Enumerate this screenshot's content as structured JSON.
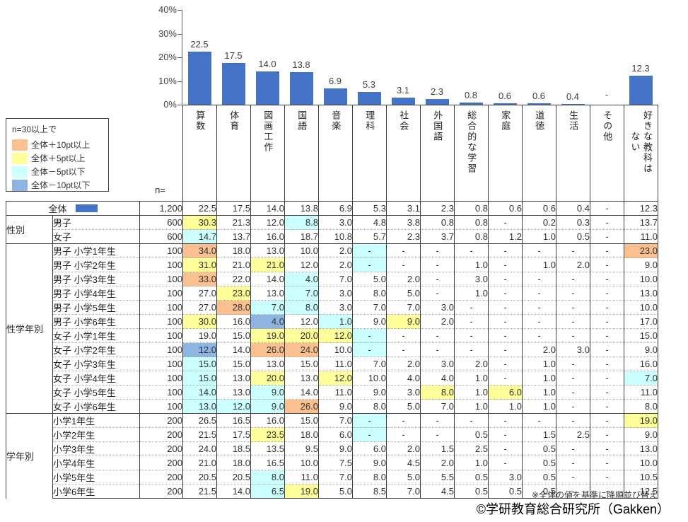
{
  "chart_data": {
    "type": "bar",
    "title": "",
    "xlabel": "",
    "ylabel": "",
    "unit": "%",
    "ylim": [
      0,
      40
    ],
    "ytick_labels": [
      "40%",
      "30%",
      "20%",
      "10%",
      "0%"
    ],
    "grid": false,
    "legend_position": "none",
    "bar_color": "#4472C4",
    "categories": [
      "算数",
      "体育",
      "図画工作",
      "国語",
      "音楽",
      "理科",
      "社会",
      "外国語",
      "総合的な学習",
      "家庭",
      "道徳",
      "生活",
      "その他",
      "好きな教科はない"
    ],
    "values": [
      22.5,
      17.5,
      14.0,
      13.8,
      6.9,
      5.3,
      3.1,
      2.3,
      0.8,
      0.6,
      0.6,
      0.4,
      null,
      12.3
    ],
    "value_labels": [
      "22.5",
      "17.5",
      "14.0",
      "13.8",
      "6.9",
      "5.3",
      "3.1",
      "2.3",
      "0.8",
      "0.6",
      "0.6",
      "0.4",
      "-",
      "12.3"
    ]
  },
  "legend": {
    "title": "n=30以上で",
    "items": [
      {
        "label": "全体＋10pt以上",
        "color": "#FAC090",
        "code": "o"
      },
      {
        "label": "全体＋5pt以上",
        "color": "#FFFF99",
        "code": "y"
      },
      {
        "label": "全体－5pt以下",
        "color": "#CCFFFF",
        "code": "c"
      },
      {
        "label": "全体－10pt以下",
        "color": "#8EB4E3",
        "code": "b"
      }
    ]
  },
  "colors": {
    "bar": "#4472C4",
    "hl_o": "#FAC090",
    "hl_y": "#FFFF99",
    "hl_c": "#CCFFFF",
    "hl_b": "#8EB4E3"
  },
  "table": {
    "n_header": "n=",
    "columns": [
      "算数",
      "体育",
      "図画工作",
      "国語",
      "音楽",
      "理科",
      "社会",
      "外国語",
      "総合的な学習",
      "家庭",
      "道徳",
      "生活",
      "その他",
      "好きな教科は\nない"
    ],
    "groups": [
      {
        "label": "",
        "overall": true,
        "rows": [
          {
            "label": "全体",
            "n": "1,200",
            "values": [
              "22.5",
              "17.5",
              "14.0",
              "13.8",
              "6.9",
              "5.3",
              "3.1",
              "2.3",
              "0.8",
              "0.6",
              "0.6",
              "0.4",
              "-",
              "12.3"
            ],
            "hl": [
              "",
              "",
              "",
              "",
              "",
              "",
              "",
              "",
              "",
              "",
              "",
              "",
              "",
              ""
            ]
          }
        ]
      },
      {
        "label": "性別",
        "rows": [
          {
            "label": "男子",
            "n": "600",
            "values": [
              "30.3",
              "21.3",
              "12.0",
              "8.8",
              "3.0",
              "4.8",
              "3.8",
              "0.8",
              "0.8",
              "-",
              "0.2",
              "0.3",
              "-",
              "13.7"
            ],
            "hl": [
              "y",
              "",
              "",
              "c",
              "",
              "",
              "",
              "",
              "",
              "",
              "",
              "",
              "",
              ""
            ]
          },
          {
            "label": "女子",
            "n": "600",
            "values": [
              "14.7",
              "13.7",
              "16.0",
              "18.7",
              "10.8",
              "5.7",
              "2.3",
              "3.7",
              "0.8",
              "1.2",
              "1.0",
              "0.5",
              "-",
              "11.0"
            ],
            "hl": [
              "c",
              "",
              "",
              "",
              "",
              "",
              "",
              "",
              "",
              "",
              "",
              "",
              "",
              ""
            ]
          }
        ]
      },
      {
        "label": "性学年別",
        "rows": [
          {
            "label": "男子 小学1年生",
            "n": "100",
            "values": [
              "34.0",
              "18.0",
              "13.0",
              "10.0",
              "2.0",
              "-",
              "-",
              "-",
              "-",
              "-",
              "-",
              "-",
              "-",
              "23.0"
            ],
            "hl": [
              "o",
              "",
              "",
              "",
              "",
              "c",
              "",
              "",
              "",
              "",
              "",
              "",
              "",
              "o"
            ]
          },
          {
            "label": "男子 小学2年生",
            "n": "100",
            "values": [
              "31.0",
              "21.0",
              "21.0",
              "12.0",
              "2.0",
              "-",
              "-",
              "-",
              "1.0",
              "-",
              "1.0",
              "2.0",
              "-",
              "9.0"
            ],
            "hl": [
              "y",
              "",
              "y",
              "",
              "",
              "c",
              "",
              "",
              "",
              "",
              "",
              "",
              "",
              ""
            ]
          },
          {
            "label": "男子 小学3年生",
            "n": "100",
            "values": [
              "33.0",
              "22.0",
              "14.0",
              "4.0",
              "7.0",
              "5.0",
              "2.0",
              "-",
              "3.0",
              "-",
              "-",
              "-",
              "-",
              "10.0"
            ],
            "hl": [
              "o",
              "",
              "",
              "c",
              "",
              "",
              "",
              "",
              "",
              "",
              "",
              "",
              "",
              ""
            ]
          },
          {
            "label": "男子 小学4年生",
            "n": "100",
            "values": [
              "27.0",
              "23.0",
              "13.0",
              "7.0",
              "3.0",
              "8.0",
              "5.0",
              "-",
              "1.0",
              "-",
              "-",
              "-",
              "-",
              "13.0"
            ],
            "hl": [
              "",
              "y",
              "",
              "c",
              "",
              "",
              "",
              "",
              "",
              "",
              "",
              "",
              "",
              ""
            ]
          },
          {
            "label": "男子 小学5年生",
            "n": "100",
            "values": [
              "27.0",
              "28.0",
              "7.0",
              "8.0",
              "3.0",
              "7.0",
              "7.0",
              "3.0",
              "-",
              "-",
              "-",
              "-",
              "-",
              "10.0"
            ],
            "hl": [
              "",
              "o",
              "c",
              "c",
              "",
              "",
              "",
              "",
              "",
              "",
              "",
              "",
              "",
              ""
            ]
          },
          {
            "label": "男子 小学6年生",
            "n": "100",
            "values": [
              "30.0",
              "16.0",
              "4.0",
              "12.0",
              "1.0",
              "9.0",
              "9.0",
              "2.0",
              "-",
              "-",
              "-",
              "-",
              "-",
              "17.0"
            ],
            "hl": [
              "y",
              "",
              "b",
              "",
              "c",
              "",
              "y",
              "",
              "",
              "",
              "",
              "",
              "",
              ""
            ]
          },
          {
            "label": "女子 小学1年生",
            "n": "100",
            "values": [
              "19.0",
              "15.0",
              "19.0",
              "20.0",
              "12.0",
              "-",
              "-",
              "-",
              "-",
              "-",
              "-",
              "-",
              "-",
              "15.0"
            ],
            "hl": [
              "",
              "",
              "y",
              "y",
              "y",
              "c",
              "",
              "",
              "",
              "",
              "",
              "",
              "",
              ""
            ]
          },
          {
            "label": "女子 小学2年生",
            "n": "100",
            "values": [
              "12.0",
              "14.0",
              "26.0",
              "24.0",
              "10.0",
              "-",
              "-",
              "-",
              "-",
              "-",
              "2.0",
              "3.0",
              "-",
              "9.0"
            ],
            "hl": [
              "b",
              "",
              "o",
              "o",
              "",
              "c",
              "",
              "",
              "",
              "",
              "",
              "",
              "",
              ""
            ]
          },
          {
            "label": "女子 小学3年生",
            "n": "100",
            "values": [
              "15.0",
              "15.0",
              "13.0",
              "15.0",
              "11.0",
              "7.0",
              "2.0",
              "3.0",
              "2.0",
              "-",
              "1.0",
              "-",
              "-",
              "16.0"
            ],
            "hl": [
              "c",
              "",
              "",
              "",
              "",
              "",
              "",
              "",
              "",
              "",
              "",
              "",
              "",
              ""
            ]
          },
          {
            "label": "女子 小学4年生",
            "n": "100",
            "values": [
              "15.0",
              "13.0",
              "20.0",
              "13.0",
              "12.0",
              "10.0",
              "4.0",
              "4.0",
              "1.0",
              "-",
              "1.0",
              "-",
              "-",
              "7.0"
            ],
            "hl": [
              "c",
              "",
              "y",
              "",
              "y",
              "",
              "",
              "",
              "",
              "",
              "",
              "",
              "",
              "c"
            ]
          },
          {
            "label": "女子 小学5年生",
            "n": "100",
            "values": [
              "14.0",
              "13.0",
              "9.0",
              "14.0",
              "11.0",
              "9.0",
              "3.0",
              "8.0",
              "1.0",
              "6.0",
              "1.0",
              "-",
              "-",
              "11.0"
            ],
            "hl": [
              "c",
              "",
              "c",
              "",
              "",
              "",
              "",
              "y",
              "",
              "y",
              "",
              "",
              "",
              ""
            ]
          },
          {
            "label": "女子 小学6年生",
            "n": "100",
            "values": [
              "13.0",
              "12.0",
              "9.0",
              "26.0",
              "9.0",
              "8.0",
              "5.0",
              "7.0",
              "1.0",
              "1.0",
              "1.0",
              "-",
              "-",
              "8.0"
            ],
            "hl": [
              "c",
              "c",
              "c",
              "o",
              "",
              "",
              "",
              "",
              "",
              "",
              "",
              "",
              "",
              ""
            ]
          }
        ]
      },
      {
        "label": "学年別",
        "rows": [
          {
            "label": "小学1年生",
            "n": "200",
            "values": [
              "26.5",
              "16.5",
              "16.0",
              "15.0",
              "7.0",
              "-",
              "-",
              "-",
              "-",
              "-",
              "-",
              "-",
              "-",
              "19.0"
            ],
            "hl": [
              "",
              "",
              "",
              "",
              "",
              "c",
              "",
              "",
              "",
              "",
              "",
              "",
              "",
              "y"
            ]
          },
          {
            "label": "小学2年生",
            "n": "200",
            "values": [
              "21.5",
              "17.5",
              "23.5",
              "18.0",
              "6.0",
              "-",
              "-",
              "-",
              "0.5",
              "-",
              "1.5",
              "2.5",
              "-",
              "9.0"
            ],
            "hl": [
              "",
              "",
              "y",
              "",
              "",
              "c",
              "",
              "",
              "",
              "",
              "",
              "",
              "",
              ""
            ]
          },
          {
            "label": "小学3年生",
            "n": "200",
            "values": [
              "24.0",
              "18.5",
              "13.5",
              "9.5",
              "9.0",
              "6.0",
              "2.0",
              "1.5",
              "2.5",
              "-",
              "0.5",
              "-",
              "-",
              "13.0"
            ],
            "hl": [
              "",
              "",
              "",
              "",
              "",
              "",
              "",
              "",
              "",
              "",
              "",
              "",
              "",
              ""
            ]
          },
          {
            "label": "小学4年生",
            "n": "200",
            "values": [
              "21.0",
              "18.0",
              "16.5",
              "10.0",
              "7.5",
              "9.0",
              "4.5",
              "2.0",
              "1.0",
              "-",
              "0.5",
              "-",
              "-",
              "10.0"
            ],
            "hl": [
              "",
              "",
              "",
              "",
              "",
              "",
              "",
              "",
              "",
              "",
              "",
              "",
              "",
              ""
            ]
          },
          {
            "label": "小学5年生",
            "n": "200",
            "values": [
              "20.5",
              "20.5",
              "8.0",
              "11.0",
              "7.0",
              "8.0",
              "5.0",
              "5.5",
              "0.5",
              "3.0",
              "0.5",
              "-",
              "-",
              "10.5"
            ],
            "hl": [
              "",
              "",
              "c",
              "",
              "",
              "",
              "",
              "",
              "",
              "",
              "",
              "",
              "",
              ""
            ]
          },
          {
            "label": "小学6年生",
            "n": "200",
            "values": [
              "21.5",
              "14.0",
              "6.5",
              "19.0",
              "5.0",
              "8.5",
              "7.0",
              "4.5",
              "0.5",
              "0.5",
              "0.5",
              "-",
              "-",
              "12.5"
            ],
            "hl": [
              "",
              "",
              "c",
              "y",
              "",
              "",
              "",
              "",
              "",
              "",
              "",
              "",
              "",
              ""
            ]
          }
        ]
      }
    ]
  },
  "footnote": "※全体の値を基準に降順並び替え",
  "copyright": "©学研教育総合研究所（Gakken）"
}
